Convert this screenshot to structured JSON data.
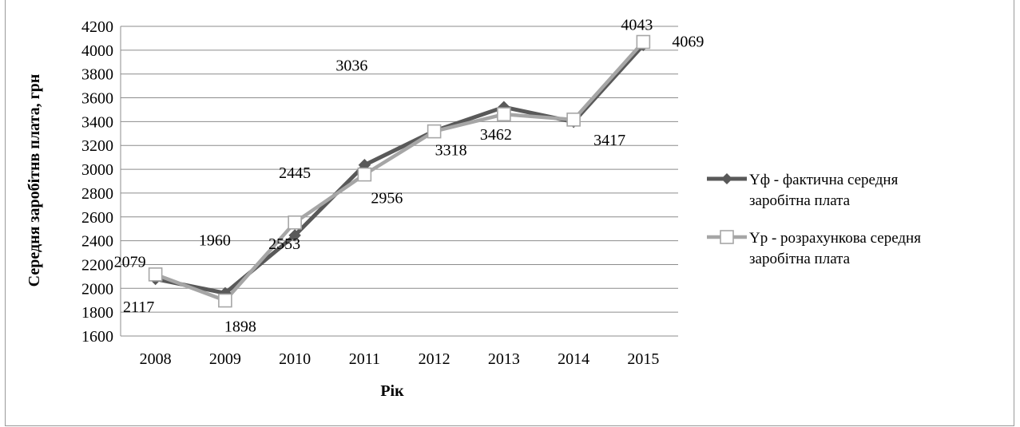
{
  "chart_data": {
    "type": "line",
    "title": "",
    "xlabel": "Рік",
    "ylabel": "Середня заробітнв плата, грн",
    "ylim": [
      1600,
      4200
    ],
    "yticks": [
      1600,
      1800,
      2000,
      2200,
      2400,
      2600,
      2800,
      3000,
      3200,
      3400,
      3600,
      3800,
      4000,
      4200
    ],
    "categories": [
      "2008",
      "2009",
      "2010",
      "2011",
      "2012",
      "2013",
      "2014",
      "2015"
    ],
    "grid": true,
    "legend_position": "right",
    "series": [
      {
        "name": "Yф - фактична середня заробітна плата",
        "legend_lines": [
          "Yф - фактична середня",
          "заробітна плата"
        ],
        "values": [
          2079,
          1960,
          2445,
          3036,
          3321,
          3522,
          3398,
          4043
        ],
        "color": "#595959",
        "marker": "diamond"
      },
      {
        "name": "Yр - розрахункова середня заробітна плата",
        "legend_lines": [
          "Yр - розрахункова середня",
          "заробітна плата"
        ],
        "values": [
          2117,
          1898,
          2553,
          2956,
          3318,
          3462,
          3417,
          4069
        ],
        "color": "#a6a6a6",
        "marker": "square"
      }
    ]
  }
}
